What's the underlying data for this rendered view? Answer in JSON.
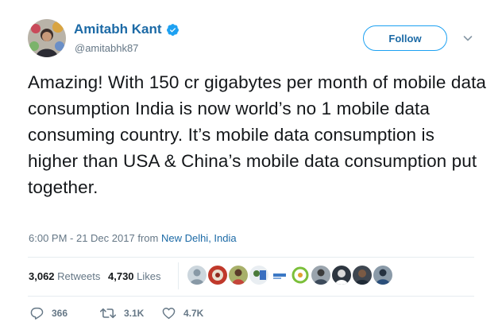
{
  "tweet": {
    "author": {
      "display_name": "Amitabh Kant",
      "handle": "@amitabhk87",
      "verified": true,
      "avatar_icon": "profile-photo"
    },
    "follow_label": "Follow",
    "text": "Amazing! With 150 cr gigabytes per month of mobile data consumption India is now world’s no 1 mobile data consuming country. It’s mobile data consumption is higher than USA & China’s mobile data consumption put together.",
    "timestamp": "6:00 PM - 21 Dec 2017",
    "from_word": "from",
    "location": "New Delhi, India",
    "stats": {
      "retweets_count": "3,062",
      "retweets_label": "Retweets",
      "likes_count": "4,730",
      "likes_label": "Likes"
    },
    "actions": {
      "reply_count": "366",
      "retweet_count": "3.1K",
      "like_count": "4.7K"
    },
    "colors": {
      "link": "#1c6aa6",
      "accent": "#1da1f2",
      "secondary_text": "#657786",
      "divider": "#e6ecf0"
    }
  }
}
